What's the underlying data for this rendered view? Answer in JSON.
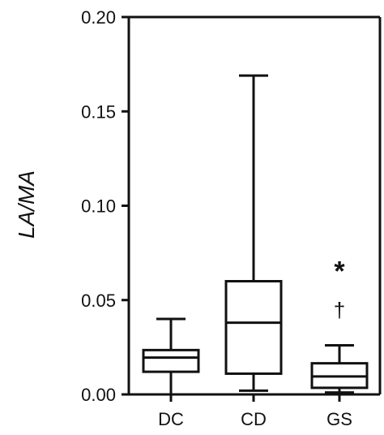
{
  "chart_data": {
    "type": "boxplot",
    "title": "",
    "xlabel": "",
    "ylabel": "LA/MA",
    "ylim": [
      0,
      0.2
    ],
    "y_ticks": [
      "0.00",
      "0.05",
      "0.10",
      "0.15",
      "0.20"
    ],
    "grid": false,
    "categories": [
      "DC",
      "CD",
      "GS"
    ],
    "boxes": [
      {
        "category": "DC",
        "min": 0.0,
        "q1": 0.012,
        "median": 0.0195,
        "q3": 0.0235,
        "max": 0.04
      },
      {
        "category": "CD",
        "min": 0.002,
        "q1": 0.011,
        "median": 0.038,
        "q3": 0.06,
        "max": 0.169
      },
      {
        "category": "GS",
        "min": 0.001,
        "q1": 0.0035,
        "median": 0.0095,
        "q3": 0.0165,
        "max": 0.026
      }
    ],
    "annotations": [
      {
        "category": "GS",
        "text": "*",
        "y": 0.07
      },
      {
        "category": "GS",
        "text": "†",
        "y": 0.046
      }
    ]
  }
}
